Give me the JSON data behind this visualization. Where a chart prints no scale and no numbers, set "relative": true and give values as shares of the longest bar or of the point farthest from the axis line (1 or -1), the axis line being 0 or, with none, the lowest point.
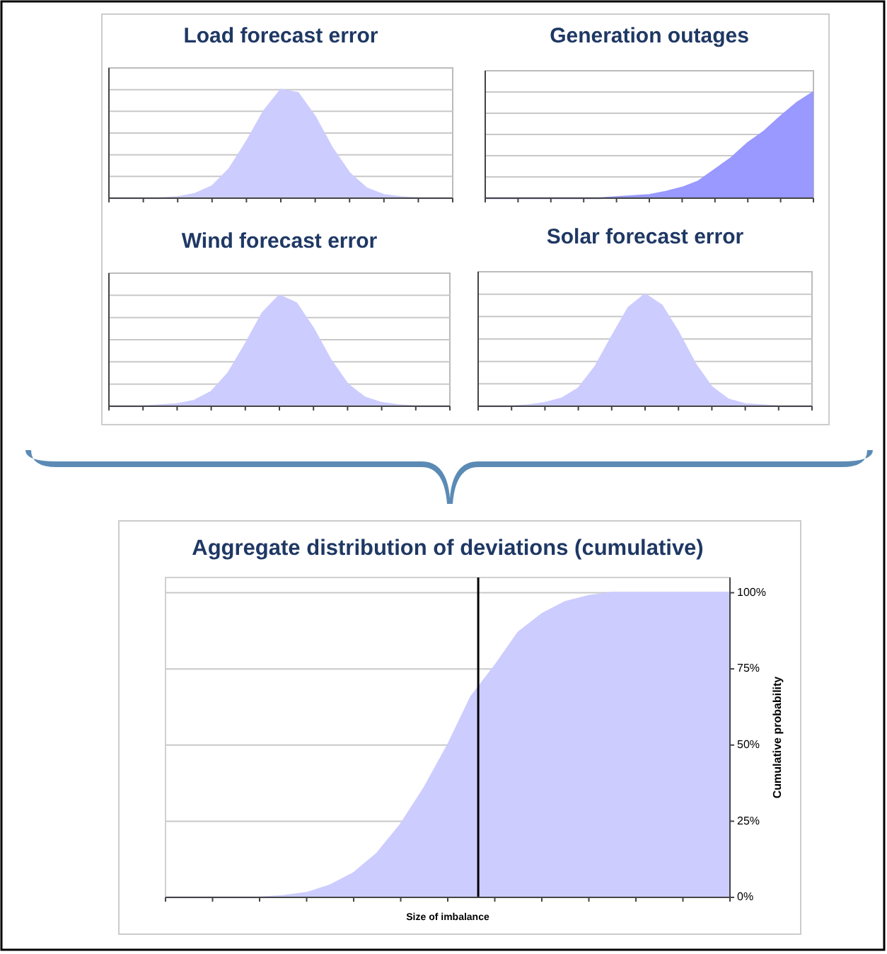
{
  "chart_data": [
    {
      "type": "area",
      "title": "Load forecast error",
      "relative": true,
      "grid": true,
      "categories": [
        null,
        null,
        null,
        null,
        null,
        null,
        null,
        null,
        null,
        null,
        null,
        null,
        null,
        null,
        null,
        null,
        null,
        null,
        null,
        null,
        null
      ],
      "series": [
        {
          "color": "#ccccff",
          "values": [
            0,
            0,
            0,
            0,
            0.01,
            0.04,
            0.11,
            0.27,
            0.52,
            0.8,
            1,
            0.97,
            0.75,
            0.46,
            0.23,
            0.09,
            0.03,
            0.01,
            0,
            0,
            0
          ]
        }
      ]
    },
    {
      "type": "area",
      "title": "Generation outages",
      "relative": true,
      "grid": true,
      "categories": [
        null,
        null,
        null,
        null,
        null,
        null,
        null,
        null,
        null,
        null,
        null,
        null,
        null,
        null,
        null,
        null,
        null,
        null,
        null,
        null,
        null
      ],
      "series": [
        {
          "color": "#9999ff",
          "values": [
            0,
            0,
            0,
            0,
            0,
            0,
            0,
            0,
            0.01,
            0.02,
            0.03,
            0.06,
            0.1,
            0.16,
            0.27,
            0.38,
            0.52,
            0.63,
            0.77,
            0.9,
            1
          ]
        }
      ]
    },
    {
      "type": "area",
      "title": "Wind forecast error",
      "relative": true,
      "grid": true,
      "categories": [
        null,
        null,
        null,
        null,
        null,
        null,
        null,
        null,
        null,
        null,
        null,
        null,
        null,
        null,
        null,
        null,
        null,
        null,
        null,
        null,
        null
      ],
      "series": [
        {
          "color": "#ccccff",
          "values": [
            0,
            0,
            0,
            0.01,
            0.02,
            0.05,
            0.13,
            0.3,
            0.56,
            0.84,
            1,
            0.93,
            0.7,
            0.42,
            0.2,
            0.08,
            0.03,
            0.01,
            0,
            0,
            0
          ]
        }
      ]
    },
    {
      "type": "area",
      "title": "Solar forecast error",
      "relative": true,
      "grid": true,
      "categories": [
        null,
        null,
        null,
        null,
        null,
        null,
        null,
        null,
        null,
        null,
        null,
        null,
        null,
        null,
        null,
        null,
        null,
        null,
        null,
        null,
        null
      ],
      "series": [
        {
          "color": "#ccccff",
          "values": [
            0,
            0,
            0,
            0.01,
            0.03,
            0.07,
            0.16,
            0.35,
            0.62,
            0.88,
            1,
            0.9,
            0.66,
            0.38,
            0.17,
            0.06,
            0.02,
            0.01,
            0,
            0,
            0
          ]
        }
      ]
    },
    {
      "type": "area",
      "title": "Aggregate distribution of deviations (cumulative)",
      "xlabel": "Size of imbalance",
      "ylabel": "Cumulative probability",
      "grid": "y",
      "tick_labels": "y",
      "categories": [
        null,
        null,
        null,
        null,
        null,
        null,
        null,
        null,
        null,
        null,
        null,
        null,
        null,
        null,
        null,
        null,
        null,
        null,
        null,
        null,
        null,
        null,
        null,
        null,
        null
      ],
      "ylim": [
        0,
        105
      ],
      "yticks": [
        {
          "value": 0,
          "label": "0%"
        },
        {
          "value": 25,
          "label": "25%"
        },
        {
          "value": 50,
          "label": "50%"
        },
        {
          "value": 75,
          "label": "75%"
        },
        {
          "value": 100,
          "label": "100%"
        }
      ],
      "series": [
        {
          "color": "#ccccff",
          "values": [
            0,
            0,
            0,
            0,
            0,
            0.5,
            1.5,
            4,
            8,
            14.5,
            24,
            36,
            50,
            66,
            76,
            87,
            93,
            97,
            99,
            100,
            100,
            100,
            100,
            100,
            100
          ]
        }
      ]
    }
  ]
}
